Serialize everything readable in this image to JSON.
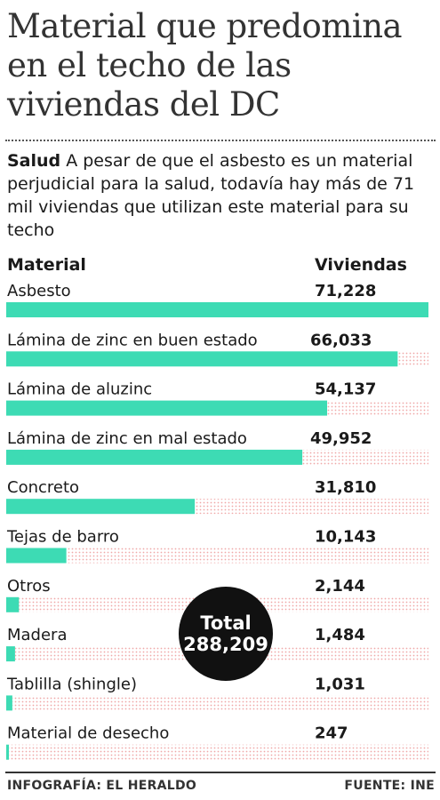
{
  "header": {
    "title_lines": [
      "Material  que predomina",
      "en el techo de las",
      "viviendas del DC"
    ],
    "intro_lead": "Salud",
    "intro_text": " A pesar de que el asbesto es un material perjudicial para la salud, todavía hay más de 71 mil viviendas que utilizan este material para su techo"
  },
  "columns": {
    "material": "Material",
    "viviendas": "Viviendas"
  },
  "chart_data": {
    "type": "bar",
    "orientation": "horizontal",
    "categories": [
      "Asbesto",
      "Lámina de zinc en buen estado",
      "Lámina de aluzinc",
      "Lámina de zinc en mal estado",
      "Concreto",
      "Tejas de barro",
      "Otros",
      "Madera",
      "Tablilla (shingle)",
      "Material de desecho"
    ],
    "values": [
      71228,
      66033,
      54137,
      49952,
      31810,
      10143,
      2144,
      1484,
      1031,
      247
    ],
    "value_labels": [
      "71,228",
      "66,033",
      "54,137",
      "49,952",
      "31,810",
      "10,143",
      "2,144",
      "1,484",
      "1,031",
      "247"
    ],
    "xlim": [
      0,
      71228
    ],
    "bar_color": "#3ddbb4",
    "track_color": "#f0a8a8",
    "grid": false,
    "legend": "none"
  },
  "total": {
    "label": "Total",
    "value": "288,209"
  },
  "footer": {
    "credit": "INFOGRAFÍA: EL HERALDO",
    "source": "FUENTE: INE"
  }
}
